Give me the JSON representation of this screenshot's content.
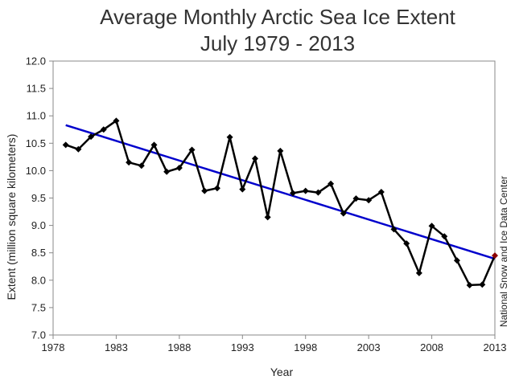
{
  "chart_data": {
    "type": "line",
    "title": "Average Monthly Arctic Sea Ice Extent",
    "subtitle": "July 1979 - 2013",
    "xlabel": "Year",
    "ylabel": "Extent (million square kilometers)",
    "credit": "National Snow and Ice Data Center",
    "xlim": [
      1978,
      2013
    ],
    "ylim": [
      7.0,
      12.0
    ],
    "x_ticks": [
      "1978",
      "1983",
      "1988",
      "1993",
      "1998",
      "2003",
      "2008",
      "2013"
    ],
    "y_ticks": [
      "7.0",
      "7.5",
      "8.0",
      "8.5",
      "9.0",
      "9.5",
      "10.0",
      "10.5",
      "11.0",
      "11.5",
      "12.0"
    ],
    "grid": false,
    "series": [
      {
        "x": [
          1979,
          1980,
          1981,
          1982,
          1983,
          1984,
          1985,
          1986,
          1987,
          1988,
          1989,
          1990,
          1991,
          1992,
          1993,
          1994,
          1995,
          1996,
          1997,
          1998,
          1999,
          2000,
          2001,
          2002,
          2003,
          2004,
          2005,
          2006,
          2007,
          2008,
          2009,
          2010,
          2011,
          2012,
          2013
        ],
        "values": [
          10.47,
          10.39,
          10.62,
          10.75,
          10.91,
          10.15,
          10.09,
          10.47,
          9.98,
          10.05,
          10.38,
          9.63,
          9.68,
          10.61,
          9.66,
          10.22,
          9.15,
          10.36,
          9.59,
          9.63,
          9.6,
          9.76,
          9.22,
          9.49,
          9.46,
          9.61,
          8.93,
          8.67,
          8.13,
          8.99,
          8.8,
          8.36,
          7.91,
          7.92,
          8.45
        ],
        "color": "#000000",
        "marker": "diamond",
        "highlight_last_color": "#8B0000"
      }
    ],
    "trend": {
      "x": [
        1979,
        2013
      ],
      "values": [
        10.83,
        8.39
      ],
      "color": "#0000CC"
    }
  }
}
